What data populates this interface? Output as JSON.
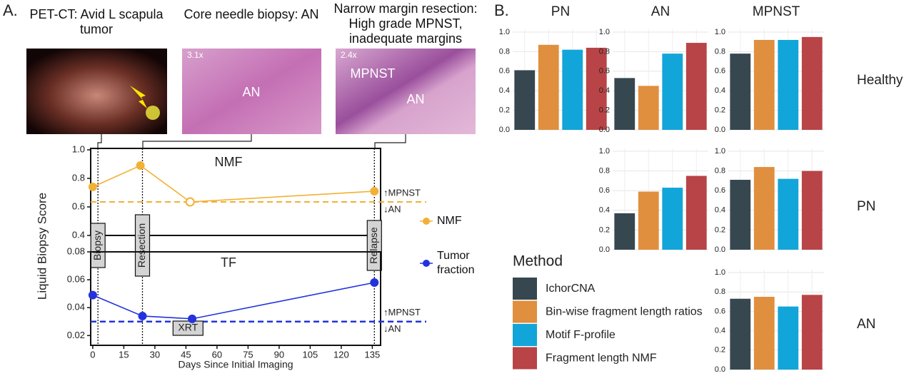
{
  "panel_labels": [
    "A.",
    "B."
  ],
  "images": [
    {
      "caption": "PET-CT: Avid L scapula tumor",
      "labels": []
    },
    {
      "caption": "Core needle biopsy: AN",
      "labels": [
        "3.1x",
        "AN"
      ]
    },
    {
      "caption": "Narrow margin resection: High grade MPNST, inadequate margins",
      "labels": [
        "2.4x",
        "MPNST",
        "AN"
      ]
    }
  ],
  "chart_data": [
    {
      "type": "line",
      "title": "NMF",
      "ylabel": "Liquid Biopsy Score",
      "x": [
        0,
        23,
        47,
        136
      ],
      "xlim": [
        -1,
        139
      ],
      "ylim": [
        0.4,
        1.0
      ],
      "yticks": [
        0.4,
        0.6,
        0.8,
        {
          "value": 1,
          "label": "1.0"
        }
      ],
      "series": [
        {
          "name": "NMF",
          "color": "#f2b134",
          "values": [
            0.74,
            0.89,
            0.635,
            0.71
          ],
          "markers": [
            "filled",
            "filled",
            "open",
            "filled"
          ]
        }
      ],
      "threshold": 0.635,
      "threshold_labels": [
        "↑MPNST",
        "↓AN"
      ],
      "events": [
        {
          "label": "Biopsy",
          "x": 2.5
        },
        {
          "label": "Resection",
          "x": 24
        },
        {
          "label": "Relapse",
          "x": 136
        }
      ]
    },
    {
      "type": "line",
      "title": "TF",
      "xlabel": "Days Since Initial Imaging",
      "x": [
        0,
        24,
        48,
        136
      ],
      "xlim": [
        -1,
        139
      ],
      "xticks": [
        0,
        15,
        30,
        45,
        60,
        75,
        90,
        105,
        120,
        135
      ],
      "ylim": [
        0.013,
        0.08
      ],
      "yticks": [
        0.02,
        0.04,
        0.06,
        0.08
      ],
      "series": [
        {
          "name": "Tumor fraction",
          "color": "#2233dd",
          "values": [
            0.049,
            0.034,
            0.032,
            0.058
          ]
        }
      ],
      "threshold": 0.03,
      "threshold_labels": [
        "↑MPNST",
        "↓AN"
      ],
      "events": [
        {
          "label": "XRT",
          "x": 46
        }
      ]
    },
    {
      "type": "bar_grid",
      "columns": [
        "PN",
        "AN",
        "MPNST"
      ],
      "rows": [
        "Healthy",
        "PN",
        "AN"
      ],
      "legend_title": "Method",
      "series": [
        {
          "name": "IchorCNA",
          "color": "#37474f"
        },
        {
          "name": "Bin-wise fragment length ratios",
          "color": "#e08f3e"
        },
        {
          "name": "Motif F-profile",
          "color": "#12a5d9"
        },
        {
          "name": "Fragment length NMF",
          "color": "#b84447"
        }
      ],
      "ylim": [
        0,
        1.0
      ],
      "yticks": [
        {
          "value": 0,
          "label": "0.0"
        },
        0.2,
        0.4,
        0.6,
        0.8,
        {
          "value": 1,
          "label": "1.0"
        }
      ],
      "cells": [
        [
          [
            0.61,
            0.87,
            0.82,
            0.84
          ],
          [
            0.53,
            0.45,
            0.78,
            0.89
          ],
          [
            0.78,
            0.92,
            0.92,
            0.95
          ]
        ],
        [
          null,
          [
            0.37,
            0.59,
            0.63,
            0.75
          ],
          [
            0.71,
            0.84,
            0.72,
            0.8
          ]
        ],
        [
          null,
          null,
          [
            0.73,
            0.75,
            0.65,
            0.77
          ]
        ]
      ]
    }
  ]
}
